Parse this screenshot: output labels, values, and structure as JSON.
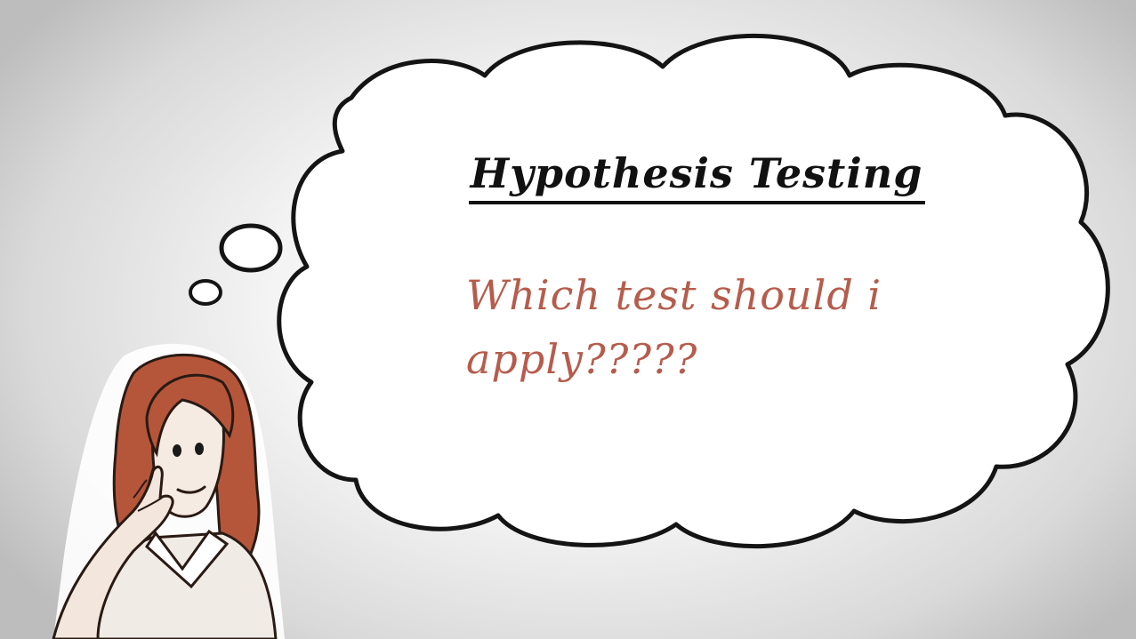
{
  "thought_bubble": {
    "title": "Hypothesis Testing",
    "question": "Which test  should i apply?????"
  },
  "colors": {
    "title_text": "#111111",
    "question_text": "#b65c4c",
    "bubble_fill": "#ffffff",
    "outline": "#111111",
    "hair": "#b5563a",
    "skin": "#f3e6dc"
  },
  "illustration": {
    "character": "woman-thinking",
    "bubble": "thought-cloud"
  }
}
